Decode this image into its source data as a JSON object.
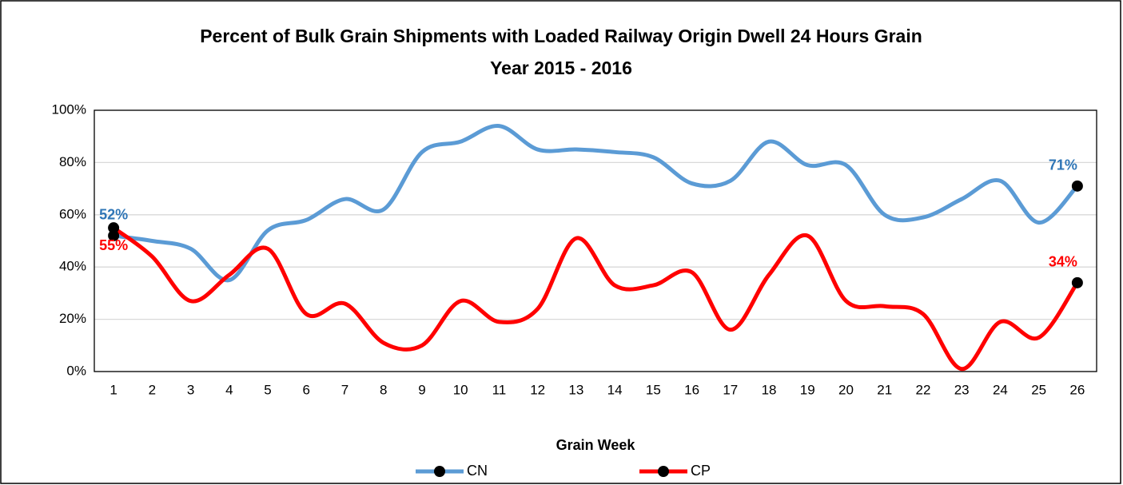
{
  "chart_data": {
    "type": "line",
    "title": "Percent of Bulk Grain Shipments with Loaded Railway Origin Dwell 24 Hours Grain",
    "subtitle": "Year 2015 - 2016",
    "x_label": "Grain Week",
    "categories": [
      "1",
      "2",
      "3",
      "4",
      "5",
      "6",
      "7",
      "8",
      "9",
      "10",
      "11",
      "12",
      "13",
      "14",
      "15",
      "16",
      "17",
      "18",
      "19",
      "20",
      "21",
      "22",
      "23",
      "24",
      "25",
      "26"
    ],
    "series": [
      {
        "name": "CN",
        "color": "#5b9bd5",
        "label_color": "#2e75b6",
        "values": [
          52,
          50,
          47,
          35,
          54,
          58,
          66,
          62,
          84,
          88,
          94,
          85,
          85,
          84,
          82,
          72,
          73,
          88,
          79,
          79,
          60,
          59,
          66,
          73,
          57,
          71
        ],
        "value_labels": [
          "52%",
          null,
          null,
          null,
          null,
          null,
          null,
          null,
          null,
          null,
          null,
          null,
          null,
          null,
          null,
          null,
          null,
          null,
          null,
          null,
          null,
          null,
          null,
          null,
          null,
          "71%"
        ]
      },
      {
        "name": "CP",
        "color": "#ff0000",
        "label_color": "#ff0000",
        "values": [
          55,
          44,
          27,
          37,
          47,
          22,
          26,
          11,
          10,
          27,
          19,
          24,
          51,
          33,
          33,
          38,
          16,
          37,
          52,
          27,
          25,
          22,
          1,
          19,
          13,
          34
        ],
        "value_labels": [
          "55%",
          null,
          null,
          null,
          null,
          null,
          null,
          null,
          null,
          null,
          null,
          null,
          null,
          null,
          null,
          null,
          null,
          null,
          null,
          null,
          null,
          null,
          null,
          null,
          null,
          "34%"
        ]
      }
    ],
    "ylim": [
      0,
      100
    ],
    "yticks": [
      {
        "value": 0,
        "label": "0%"
      },
      {
        "value": 20,
        "label": "20%"
      },
      {
        "value": 40,
        "label": "40%"
      },
      {
        "value": 60,
        "label": "60%"
      },
      {
        "value": 80,
        "label": "80%"
      },
      {
        "value": 100,
        "label": "100%"
      }
    ],
    "grid": true,
    "legend": "bottom",
    "marker_color": "#000000"
  }
}
